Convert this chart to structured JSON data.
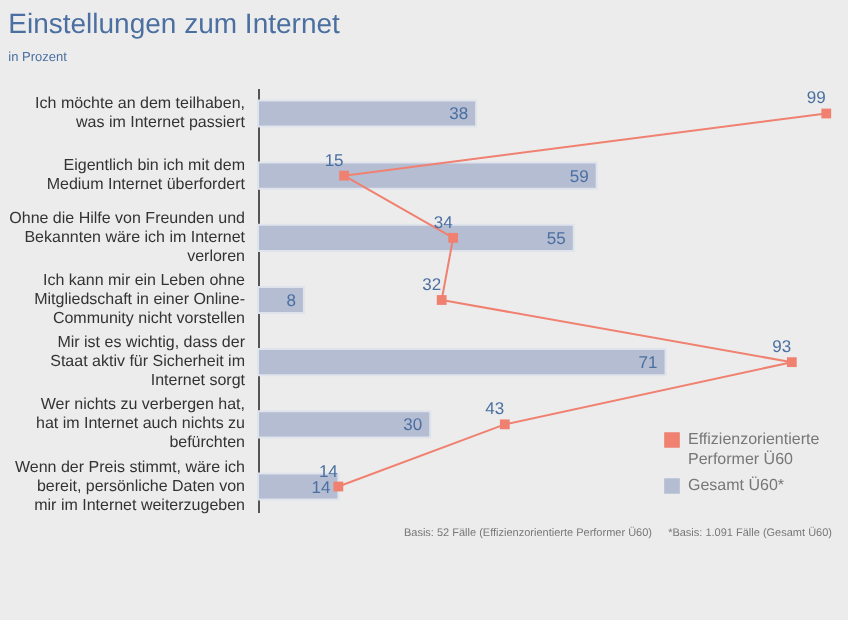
{
  "chart_data": {
    "type": "bar",
    "orientation": "horizontal",
    "title": "Einstellungen zum Internet",
    "subtitle": "in Prozent",
    "categories": [
      "Ich möchte an dem teilhaben, was im Internet passiert",
      "Eigentlich bin ich mit dem Medium Internet überfordert",
      "Ohne die Hilfe von Freunden und Bekannten wäre ich im Internet verloren",
      "Ich kann mir ein Leben ohne Mitgliedschaft in einer Online-Community nicht vorstellen",
      "Mir ist es wichtig, dass der Staat aktiv für Sicherheit im Internet sorgt",
      "Wer nichts zu verbergen hat, hat im Internet auch nichts zu befürchten",
      "Wenn der Preis stimmt, wäre ich bereit, persönliche Daten von mir im Internet weiterzugeben"
    ],
    "series": [
      {
        "name": "Effizienzorientierte Performer Ü60",
        "type": "line",
        "color": "#f08070",
        "values": [
          99,
          15,
          34,
          32,
          93,
          43,
          14
        ]
      },
      {
        "name": "Gesamt Ü60*",
        "color": "#b4bdd2",
        "values": [
          38,
          59,
          55,
          8,
          71,
          30,
          14
        ]
      }
    ],
    "xlim": [
      0,
      100
    ],
    "data_labels": true,
    "marker": "square",
    "legend": "bottom right",
    "tick_labels": "y",
    "annotations": [
      "Basis: 52 Fälle (Effizienzorientierte Performer Ü60)",
      "*Basis: 1.091 Fälle (Gesamt Ü60)"
    ]
  }
}
